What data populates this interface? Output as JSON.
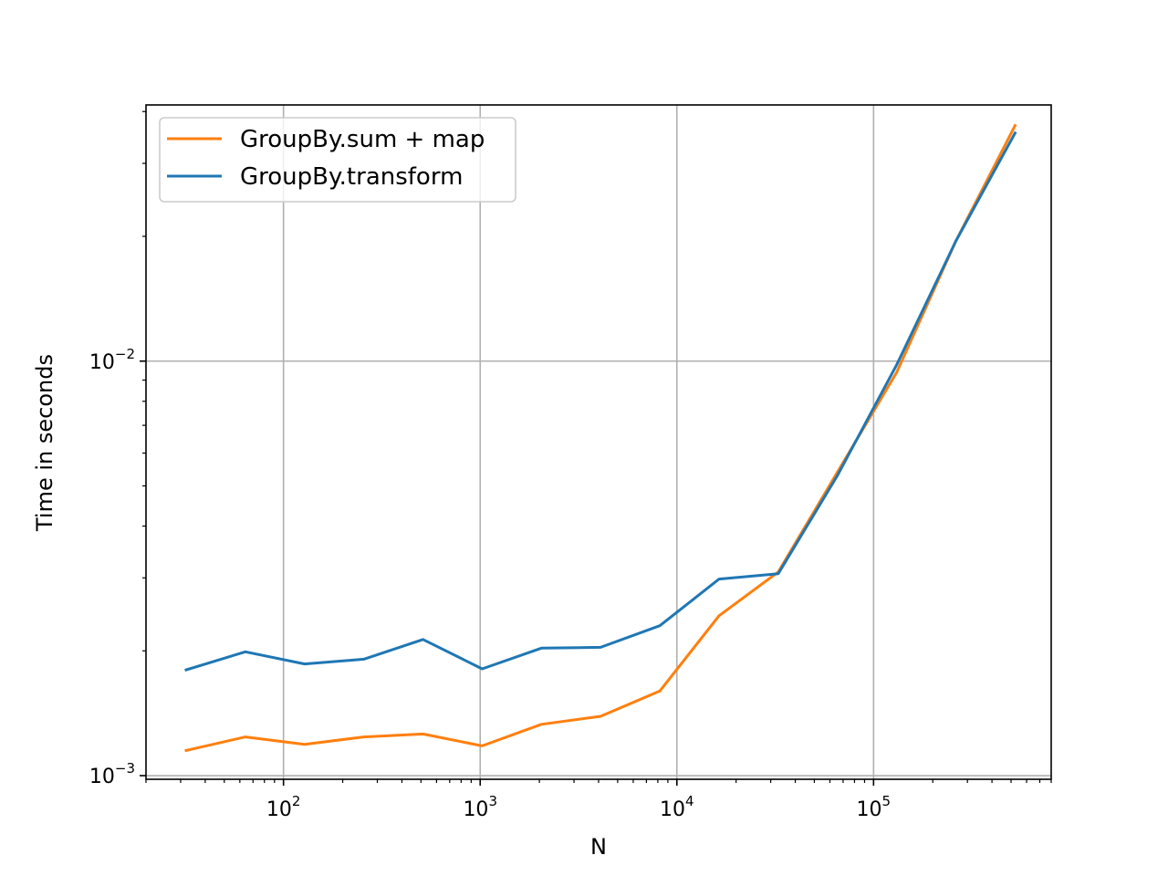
{
  "chart_data": {
    "type": "line",
    "xscale": "log",
    "yscale": "log",
    "xlabel": "N",
    "ylabel": "Time in seconds",
    "xlim": [
      20,
      800000
    ],
    "ylim": [
      0.00098,
      0.0415
    ],
    "grid": true,
    "legend_position": "upper-left",
    "x_ticks": [
      {
        "value": 100,
        "base": "10",
        "exp": "2"
      },
      {
        "value": 1000,
        "base": "10",
        "exp": "3"
      },
      {
        "value": 10000,
        "base": "10",
        "exp": "4"
      },
      {
        "value": 100000,
        "base": "10",
        "exp": "5"
      }
    ],
    "y_ticks": [
      {
        "value": 0.001,
        "base": "10",
        "exp": "−3"
      },
      {
        "value": 0.01,
        "base": "10",
        "exp": "−2"
      }
    ],
    "x": [
      32,
      64,
      128,
      256,
      512,
      1024,
      2048,
      4096,
      8192,
      16384,
      32768,
      65536,
      131072,
      262144,
      524288
    ],
    "series": [
      {
        "name": "GroupBy.sum + map",
        "color": "#ff7f0e",
        "values": [
          0.00115,
          0.00124,
          0.00119,
          0.00124,
          0.00126,
          0.00118,
          0.00133,
          0.00139,
          0.0016,
          0.00243,
          0.0031,
          0.0054,
          0.0094,
          0.0195,
          0.037
        ]
      },
      {
        "name": "GroupBy.transform",
        "color": "#1f77b4",
        "values": [
          0.0018,
          0.00199,
          0.00186,
          0.00191,
          0.00213,
          0.00181,
          0.00203,
          0.00204,
          0.0023,
          0.00298,
          0.00307,
          0.0053,
          0.0098,
          0.0195,
          0.0355
        ]
      }
    ]
  }
}
